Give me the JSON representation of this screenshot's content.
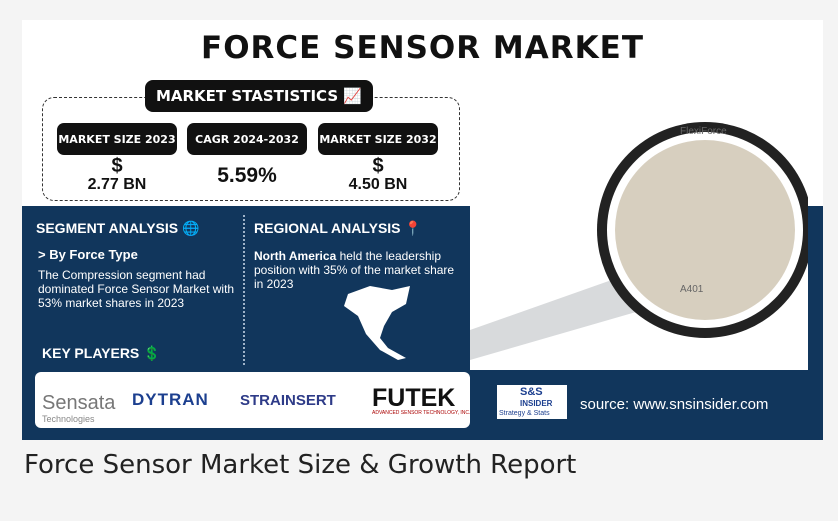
{
  "header": {
    "title": "FORCE SENSOR MARKET",
    "stats_heading": "MARKET STASTISTICS"
  },
  "stats": [
    {
      "label": "MARKET SIZE 2023",
      "currency": "$",
      "value": "2.77 BN"
    },
    {
      "label": "CAGR 2024-2032",
      "value": "5.59%"
    },
    {
      "label": "MARKET SIZE 2032",
      "currency": "$",
      "value": "4.50 BN"
    }
  ],
  "segment": {
    "heading": "SEGMENT ANALYSIS",
    "subheading": "> By Force Type",
    "text": "The Compression segment had dominated Force Sensor Market with 53% market shares in 2023"
  },
  "regional": {
    "heading": "REGIONAL ANALYSIS",
    "highlight": "North America",
    "text": " held the leadership position with 35% of the market share in 2023"
  },
  "key_players": {
    "heading": "KEY PLAYERS",
    "logos": [
      {
        "name": "Sensata",
        "sub": "Technologies"
      },
      {
        "name": "DYTRAN"
      },
      {
        "name": "STRAINSERT"
      },
      {
        "name": "FUTEK",
        "sub": "ADVANCED SENSOR TECHNOLOGY, INC."
      }
    ]
  },
  "sensor": {
    "brand": "FlexiForce",
    "model": "A401"
  },
  "brand": {
    "name": "S&S",
    "sub1": "INSIDER",
    "sub2": "Strategy & Stats",
    "source": "source: www.snsinsider.com"
  },
  "caption": "Force Sensor Market Size & Growth Report"
}
